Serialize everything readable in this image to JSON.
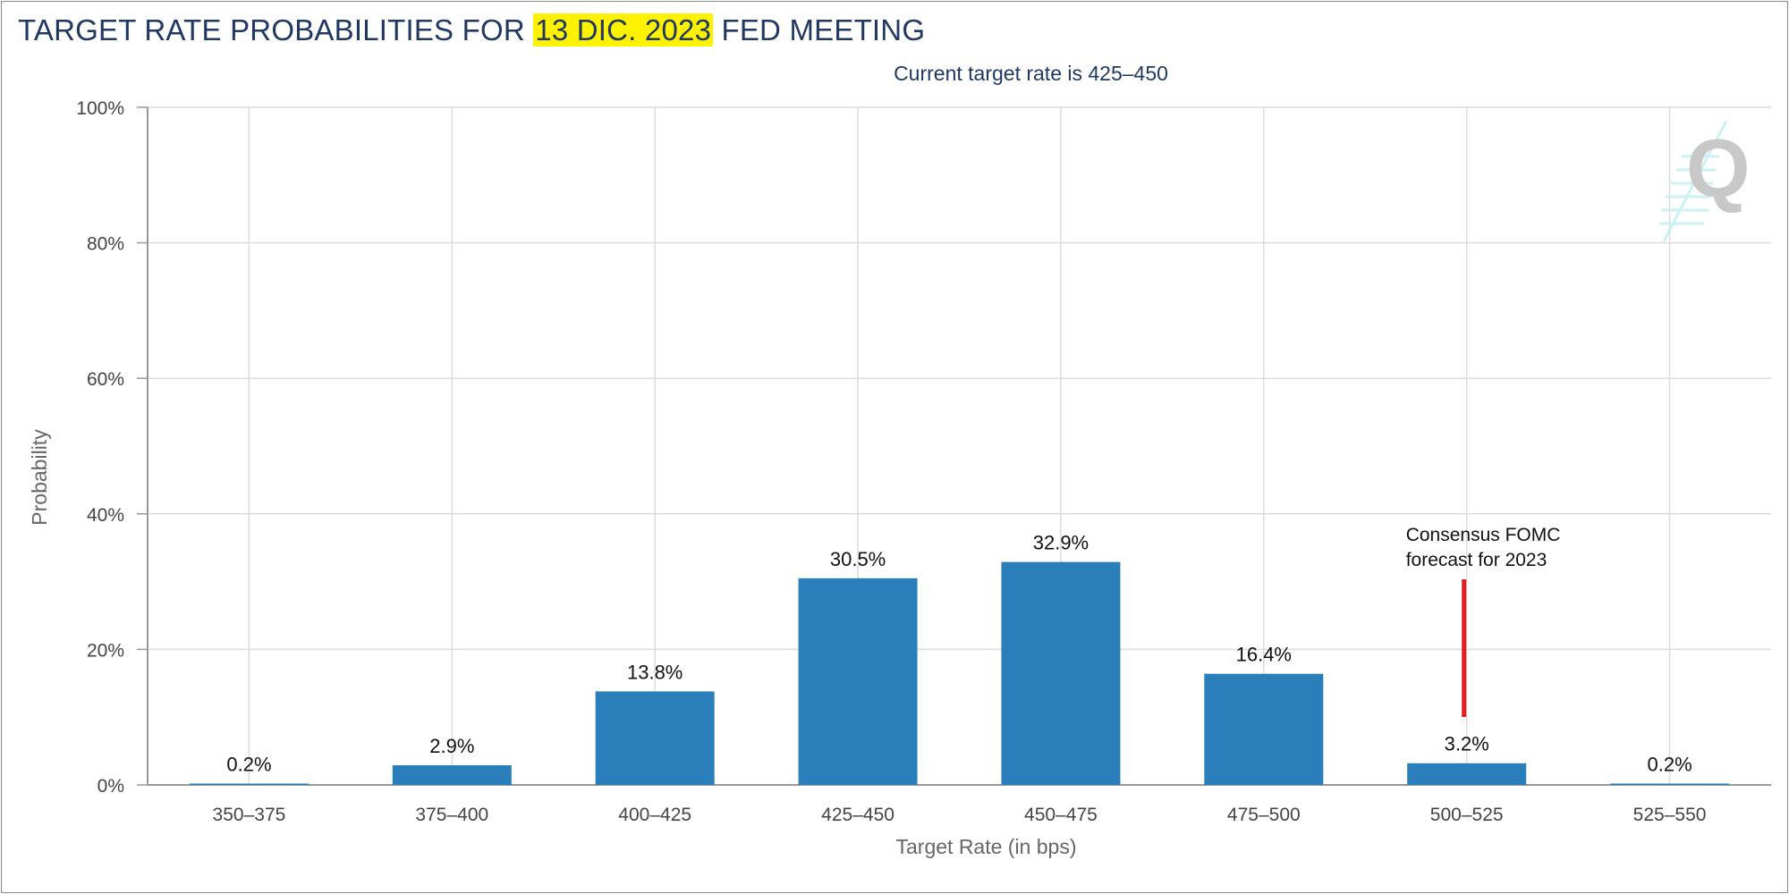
{
  "header": {
    "title_before": "TARGET RATE PROBABILITIES FOR ",
    "title_highlight": "13 DIC. 2023",
    "title_after": " FED MEETING",
    "highlight_color": "#fff200"
  },
  "watermark": {
    "icon": "q-logo-icon",
    "letter": "Q"
  },
  "chart_data": {
    "type": "bar",
    "title": "TARGET RATE PROBABILITIES FOR 13 DIC. 2023 FED MEETING",
    "subtitle": "Current target rate is 425–450",
    "xlabel": "Target Rate (in bps)",
    "ylabel": "Probability",
    "categories": [
      "350–375",
      "375–400",
      "400–425",
      "425–450",
      "450–475",
      "475–500",
      "500–525",
      "525–550"
    ],
    "values": [
      0.2,
      2.9,
      13.8,
      30.5,
      32.9,
      16.4,
      3.2,
      0.2
    ],
    "value_labels": [
      "0.2%",
      "2.9%",
      "13.8%",
      "30.5%",
      "32.9%",
      "16.4%",
      "3.2%",
      "0.2%"
    ],
    "ylim": [
      0,
      100
    ],
    "yticks": [
      0,
      20,
      40,
      60,
      80,
      100
    ],
    "ytick_labels": [
      "0%",
      "20%",
      "40%",
      "60%",
      "80%",
      "100%"
    ],
    "grid": true,
    "bar_color": "#2a7fba",
    "annotation": {
      "text_lines": [
        "Consensus FOMC",
        "forecast for 2023"
      ],
      "category": "500–525",
      "color": "#e02020"
    }
  }
}
